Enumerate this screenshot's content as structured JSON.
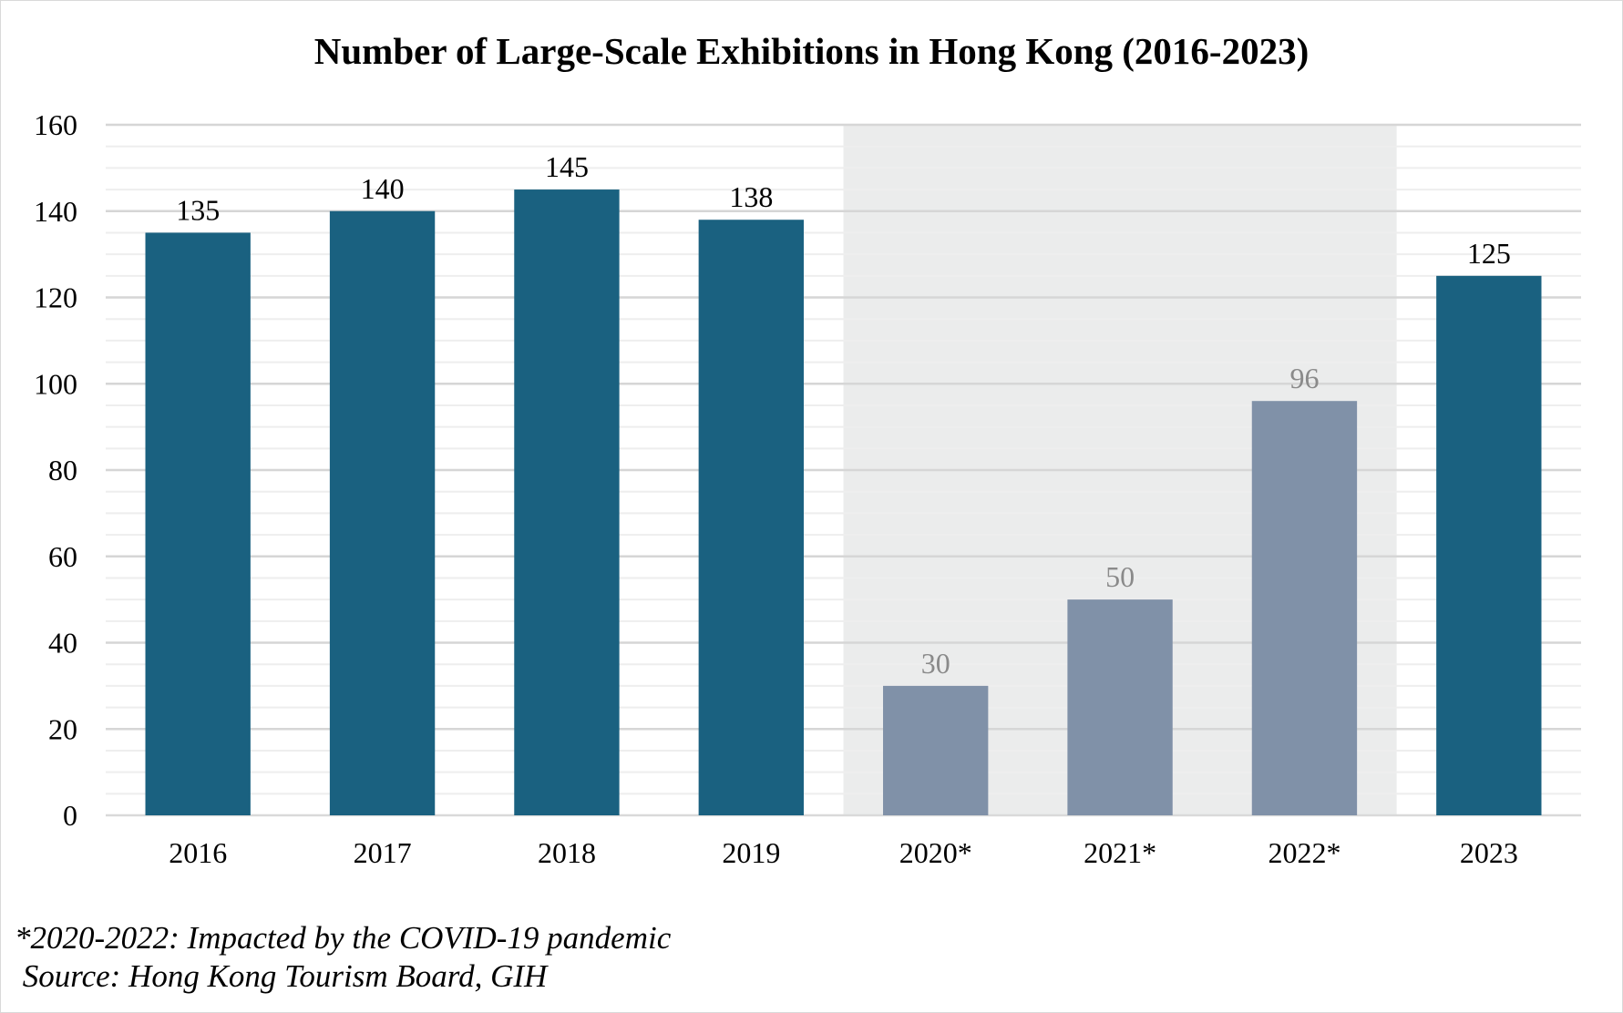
{
  "chart_data": {
    "type": "bar",
    "title": "Number of Large-Scale Exhibitions in Hong Kong (2016-2023)",
    "categories": [
      "2016",
      "2017",
      "2018",
      "2019",
      "2020*",
      "2021*",
      "2022*",
      "2023"
    ],
    "values": [
      135,
      140,
      145,
      138,
      30,
      50,
      96,
      125
    ],
    "highlighted_categories": [
      "2020*",
      "2021*",
      "2022*"
    ],
    "xlabel": "",
    "ylabel": "",
    "ylim": [
      0,
      160
    ],
    "yticks": [
      0,
      20,
      40,
      60,
      80,
      100,
      120,
      140,
      160
    ],
    "grid": true,
    "legend": "none",
    "colors": {
      "normal_bar": "#1a6180",
      "impacted_bar": "#8091a8",
      "impacted_label": "#8a8a8a",
      "shading": "#ebecec",
      "gridline": "#d9d9d9"
    }
  },
  "footnotes": {
    "note": "*2020-2022: Impacted by the COVID-19 pandemic",
    "source": " Source: Hong Kong Tourism Board, GIH"
  }
}
